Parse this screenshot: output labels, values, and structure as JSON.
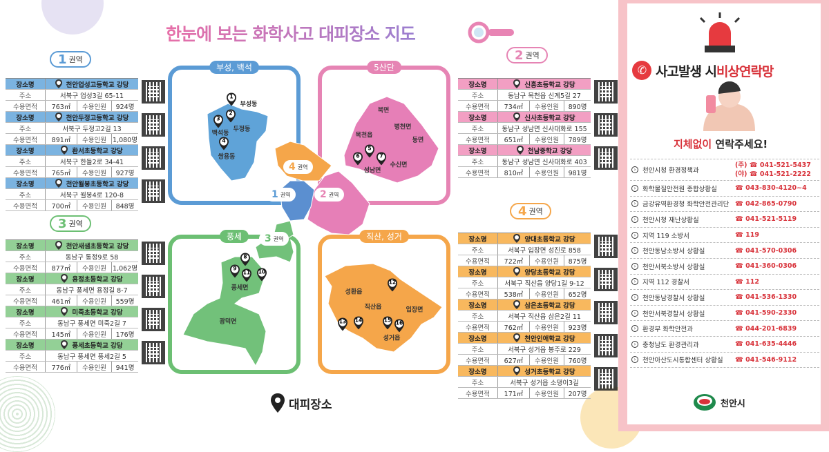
{
  "title": "한눈에 보는 화학사고 대피장소 지도",
  "legend": "대피장소",
  "labels": {
    "place": "장소명",
    "address": "주소",
    "area": "수용면적",
    "capacity": "수용인원"
  },
  "zones": [
    {
      "id": "zone1",
      "num": "1",
      "suffix": "권역",
      "color": "#5b9bd5",
      "header": "#7bb3e0",
      "places": [
        {
          "no": "1",
          "name": "천안업성고등학교 강당",
          "addr": "서북구 업성3길 65-11",
          "area": "763㎡",
          "cap": "924명"
        },
        {
          "no": "2",
          "name": "천안두정고등학교 강당",
          "addr": "서북구 두정고2길 13",
          "area": "891㎡",
          "cap": "1,080명"
        },
        {
          "no": "3",
          "name": "환서초등학교 강당",
          "addr": "서북구 한들2로 34-41",
          "area": "765㎡",
          "cap": "927명"
        },
        {
          "no": "4",
          "name": "천안월봉초등학교 강당",
          "addr": "서북구 월봉4로 120-8",
          "area": "700㎡",
          "cap": "848명"
        }
      ]
    },
    {
      "id": "zone3",
      "num": "3",
      "suffix": "권역",
      "color": "#6cbf73",
      "header": "#93d096",
      "places": [
        {
          "no": "8",
          "name": "천안새샘초등학교 강당",
          "addr": "동남구 통정9로 58",
          "area": "877㎡",
          "cap": "1,062명"
        },
        {
          "no": "9",
          "name": "용정초등학교 강당",
          "addr": "동남구 풍세면 용정길 8-7",
          "area": "461㎡",
          "cap": "559명"
        },
        {
          "no": "10",
          "name": "미죽초등학교 강당",
          "addr": "동남구 풍세면 미죽2길 7",
          "area": "145㎡",
          "cap": "176명"
        },
        {
          "no": "11",
          "name": "풍세초등학교 강당",
          "addr": "동남구 풍세면 풍세2길 5",
          "area": "776㎡",
          "cap": "941명"
        }
      ]
    },
    {
      "id": "zone2",
      "num": "2",
      "suffix": "권역",
      "color": "#e684b4",
      "header": "#f29fc3",
      "places": [
        {
          "no": "5",
          "name": "신흥초등학교 강당",
          "addr": "동남구 목천읍 신계5길 27",
          "area": "734㎡",
          "cap": "890명"
        },
        {
          "no": "6",
          "name": "신사초등학교 강당",
          "addr": "동남구 성남면 신사대화로 155",
          "area": "651㎡",
          "cap": "789명"
        },
        {
          "no": "7",
          "name": "천남중학교 강당",
          "addr": "동남구 성남면 신사대화로 403",
          "area": "810㎡",
          "cap": "981명"
        }
      ]
    },
    {
      "id": "zone4",
      "num": "4",
      "suffix": "권역",
      "color": "#f5a64a",
      "header": "#f8b85e",
      "places": [
        {
          "no": "12",
          "name": "양대초등학교 강당",
          "addr": "서북구 입장면 성진로 858",
          "area": "722㎡",
          "cap": "875명"
        },
        {
          "no": "13",
          "name": "양당초등학교 강당",
          "addr": "서북구 직산읍 양당1길 9-12",
          "area": "538㎡",
          "cap": "652명"
        },
        {
          "no": "14",
          "name": "삼은초등학교 강당",
          "addr": "서북구 직산읍 삼은2길 11",
          "area": "762㎡",
          "cap": "923명"
        },
        {
          "no": "15",
          "name": "천안인애학교 강당",
          "addr": "서북구 성거읍 봉주로 229",
          "area": "627㎡",
          "cap": "760명"
        },
        {
          "no": "16",
          "name": "성거초등학교 강당",
          "addr": "서북구 성거읍 소댕이3길",
          "area": "171㎡",
          "cap": "207명"
        }
      ]
    }
  ],
  "maps": {
    "blue": {
      "caption": "부성, 백석",
      "districts": [
        "부성동",
        "두정동",
        "백석동",
        "쌍용동"
      ],
      "pins": [
        "1",
        "2",
        "3",
        "4"
      ]
    },
    "pink": {
      "caption": "5산단",
      "districts": [
        "북면",
        "병천면",
        "목천읍",
        "동면",
        "수신면",
        "성남면"
      ],
      "pins": [
        "6",
        "5",
        "7"
      ]
    },
    "green": {
      "caption": "풍세",
      "districts": [
        "풍세면",
        "광덕면"
      ],
      "pins": [
        "8",
        "9",
        "11",
        "10"
      ]
    },
    "orange": {
      "caption": "직산, 성거",
      "districts": [
        "성환읍",
        "직산읍",
        "입장면",
        "성거읍"
      ],
      "pins": [
        "12",
        "13",
        "14",
        "15",
        "16"
      ]
    },
    "center": [
      "4",
      "1",
      "2",
      "3"
    ]
  },
  "contact": {
    "title_a": "사고발생 시 ",
    "title_b": "비상연락망",
    "sub_a": "지체없이",
    "sub_b": " 연락주세요!",
    "items": [
      {
        "name": "천안시청 환경정책과",
        "phone": "(주) ☎ 041-521-5437",
        "phone2": "(야) ☎ 041-521-2222"
      },
      {
        "name": "화학물질안전원 종합상황실",
        "phone": "☎ 043-830-4120~4"
      },
      {
        "name": "금강유역환경청 화학안전관리단",
        "phone": "☎ 042-865-0790"
      },
      {
        "name": "천안시청 재난상황실",
        "phone": "☎ 041-521-5119"
      },
      {
        "name": "지역 119 소방서",
        "phone": "☎ 119"
      },
      {
        "name": "천안동남소방서 상황실",
        "phone": "☎ 041-570-0306"
      },
      {
        "name": "천안서북소방서 상황실",
        "phone": "☎ 041-360-0306"
      },
      {
        "name": "지역 112 경찰서",
        "phone": "☎ 112"
      },
      {
        "name": "천안동남경찰서 상황실",
        "phone": "☎ 041-536-1330"
      },
      {
        "name": "천안서북경찰서 상황실",
        "phone": "☎ 041-590-2330"
      },
      {
        "name": "환경부 화학안전과",
        "phone": "☎ 044-201-6839"
      },
      {
        "name": "충청남도 환경관리과",
        "phone": "☎ 041-635-4446"
      },
      {
        "name": "천안아산도시통합센터 상황실",
        "phone": "☎ 041-546-9112"
      }
    ],
    "logo": "천안시"
  },
  "colors": {
    "accent_red": "#d8323a",
    "panel_pink": "#f7c3c8"
  }
}
